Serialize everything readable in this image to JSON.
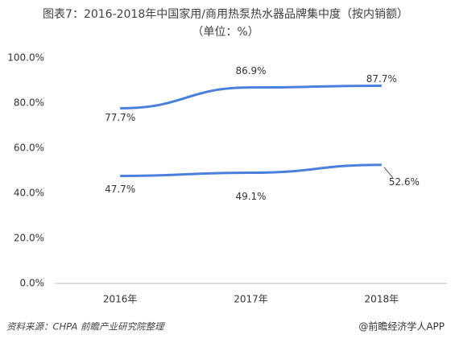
{
  "chart_data": {
    "type": "line",
    "title": "图表7：2016-2018年中国家用/商用热泵热水器品牌集中度（按内销额）",
    "subtitle": "（单位：%）",
    "categories": [
      "2016年",
      "2017年",
      "2018年"
    ],
    "series": [
      {
        "color": "#4a7fdc",
        "values": [
          77.7,
          86.9,
          87.7
        ],
        "value_labels": [
          "77.7%",
          "86.9%",
          "87.7%"
        ]
      },
      {
        "color": "#4a7fdc",
        "values": [
          47.7,
          49.1,
          52.6
        ],
        "value_labels": [
          "47.7%",
          "49.1%",
          "52.6%"
        ]
      }
    ],
    "ylim": [
      0,
      100
    ],
    "yticks": [
      {
        "value": 0,
        "label": "0.0%"
      },
      {
        "value": 20,
        "label": "20.0%"
      },
      {
        "value": 40,
        "label": "40.0%"
      },
      {
        "value": 60,
        "label": "60.0%"
      },
      {
        "value": 80,
        "label": "80.0%"
      },
      {
        "value": 100,
        "label": "100.0%"
      }
    ],
    "grid": false,
    "source": "资料来源：CHPA 前瞻产业研究院整理",
    "brand": "@前瞻经济学人APP"
  }
}
